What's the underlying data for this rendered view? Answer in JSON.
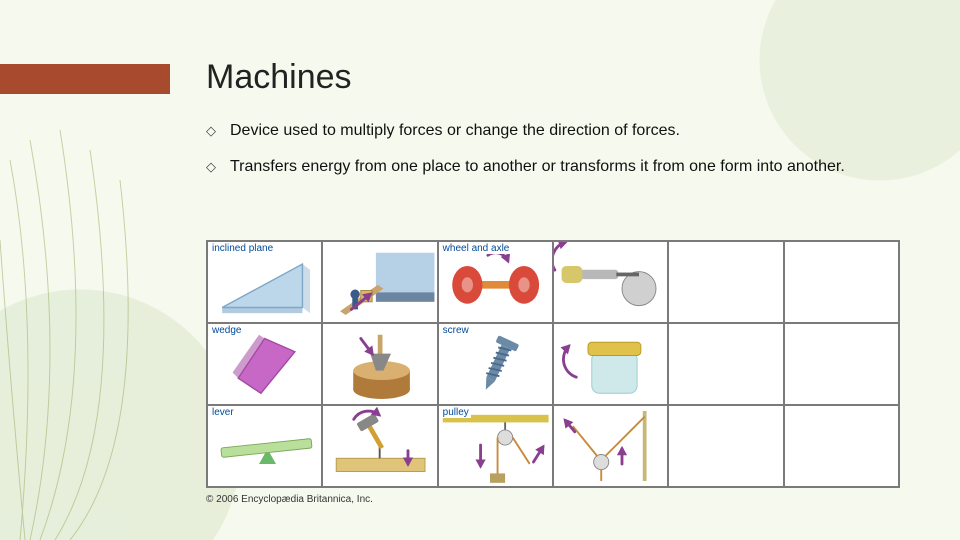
{
  "title": "Machines",
  "bullets": [
    "Device used to multiply forces or change the direction of forces.",
    "Transfers energy from one place to another or transforms it from one form into another."
  ],
  "credit": "© 2006 Encyclopædia Britannica, Inc.",
  "accent_color": "#a84a2e",
  "grid": {
    "rows": 3,
    "cols": 6,
    "border_color": "#7a7a7a",
    "cell_bg": "#ffffff",
    "label_color": "#004a99",
    "label_fontsize": 10,
    "arrow_color": "#8a3e8f",
    "cells": [
      {
        "r": 0,
        "c": 0,
        "label": "inclined plane",
        "type": "inclined-plane",
        "colors": {
          "fill": "#bcd6ea",
          "edge": "#7fa8c8"
        }
      },
      {
        "r": 0,
        "c": 1,
        "label": "",
        "type": "truck-ramp",
        "colors": {
          "truck": "#b6d0e6",
          "ramp": "#c9a46b",
          "person": "#3a5a8a"
        }
      },
      {
        "r": 0,
        "c": 2,
        "label": "wheel and axle",
        "type": "wheel-axle",
        "colors": {
          "wheel": "#d94a3a",
          "axle": "#e08a3a"
        }
      },
      {
        "r": 0,
        "c": 3,
        "label": "",
        "type": "screwdriver",
        "colors": {
          "body": "#b8b8b8",
          "handle": "#d8c76a"
        }
      },
      {
        "r": 0,
        "c": 4,
        "label": "",
        "type": "empty",
        "colors": {}
      },
      {
        "r": 0,
        "c": 5,
        "label": "",
        "type": "empty",
        "colors": {}
      },
      {
        "r": 1,
        "c": 0,
        "label": "wedge",
        "type": "wedge",
        "colors": {
          "fill": "#c768c7",
          "edge": "#a44aa4"
        }
      },
      {
        "r": 1,
        "c": 1,
        "label": "",
        "type": "axe-log",
        "colors": {
          "log": "#b07a3a",
          "axe": "#888",
          "handle": "#c9a46b"
        }
      },
      {
        "r": 1,
        "c": 2,
        "label": "screw",
        "type": "screw",
        "colors": {
          "metal": "#6a8aa8"
        }
      },
      {
        "r": 1,
        "c": 3,
        "label": "",
        "type": "jar",
        "colors": {
          "lid": "#e0c24a",
          "glass": "#cfe8ea"
        }
      },
      {
        "r": 1,
        "c": 4,
        "label": "",
        "type": "empty",
        "colors": {}
      },
      {
        "r": 1,
        "c": 5,
        "label": "",
        "type": "empty",
        "colors": {}
      },
      {
        "r": 2,
        "c": 0,
        "label": "lever",
        "type": "lever-board",
        "colors": {
          "board": "#b8e09a",
          "fulcrum": "#6ab86a"
        }
      },
      {
        "r": 2,
        "c": 1,
        "label": "",
        "type": "hammer",
        "colors": {
          "board": "#e0c47a",
          "hammer": "#d0a030",
          "head": "#888"
        }
      },
      {
        "r": 2,
        "c": 2,
        "label": "pulley",
        "type": "pulley-bar",
        "colors": {
          "bar": "#d8c24a",
          "rope": "#c98a3a",
          "pulley": "#888"
        }
      },
      {
        "r": 2,
        "c": 3,
        "label": "",
        "type": "sailboat-rope",
        "colors": {
          "rope": "#c98a3a",
          "block": "#888"
        }
      },
      {
        "r": 2,
        "c": 4,
        "label": "",
        "type": "empty",
        "colors": {}
      },
      {
        "r": 2,
        "c": 5,
        "label": "",
        "type": "empty",
        "colors": {}
      }
    ]
  }
}
